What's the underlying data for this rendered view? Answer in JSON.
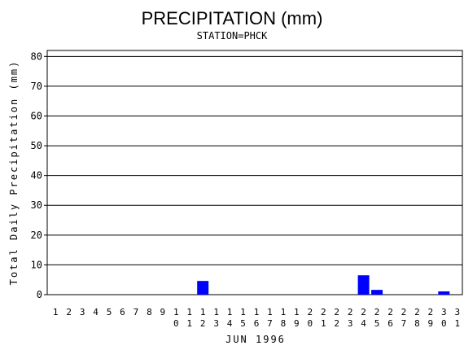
{
  "chart_data": {
    "type": "bar",
    "title": "PRECIPITATION (mm)",
    "subtitle": "STATION=PHCK",
    "x_label": "JUN 1996",
    "y_label": "Total Daily Precipitation (mm)",
    "categories": [
      "1",
      "2",
      "3",
      "4",
      "5",
      "6",
      "7",
      "8",
      "9",
      "10",
      "11",
      "12",
      "13",
      "14",
      "15",
      "16",
      "17",
      "18",
      "19",
      "20",
      "21",
      "22",
      "23",
      "24",
      "25",
      "26",
      "27",
      "28",
      "29",
      "30",
      "31"
    ],
    "values": [
      0,
      0,
      0,
      0,
      0,
      0,
      0,
      0,
      0,
      0,
      0,
      4.6,
      0,
      0,
      0,
      0,
      0,
      0,
      0,
      0,
      0,
      0,
      0,
      6.5,
      1.6,
      0,
      0,
      0,
      0,
      1.1,
      0
    ],
    "color": "#0000ff",
    "ylim": [
      0,
      82
    ],
    "yticks": [
      0,
      10,
      20,
      30,
      40,
      50,
      60,
      70,
      80
    ],
    "grid": true
  }
}
